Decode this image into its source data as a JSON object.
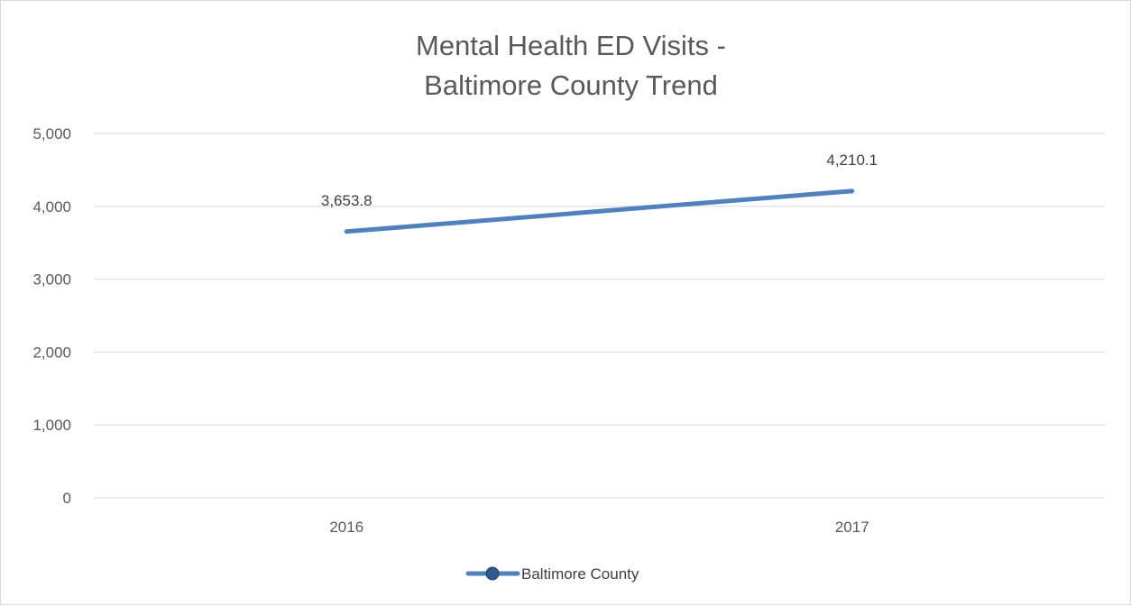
{
  "chart_data": {
    "type": "line",
    "title": "Mental Health ED Visits -\nBaltimore County Trend",
    "title_lines": [
      "Mental Health ED Visits -",
      "Baltimore County Trend"
    ],
    "xlabel": "",
    "ylabel": "",
    "categories": [
      "2016",
      "2017"
    ],
    "series": [
      {
        "name": "Baltimore County",
        "values": [
          3653.8,
          4210.1
        ],
        "data_labels": [
          "3,653.8",
          "4,210.1"
        ],
        "color": "#4f81bd"
      }
    ],
    "ylim": [
      0,
      5000
    ],
    "y_ticks": [
      0,
      1000,
      2000,
      3000,
      4000,
      5000
    ],
    "y_tick_labels": [
      "0",
      "1,000",
      "2,000",
      "3,000",
      "4,000",
      "5,000"
    ],
    "grid": true,
    "legend_position": "bottom"
  }
}
